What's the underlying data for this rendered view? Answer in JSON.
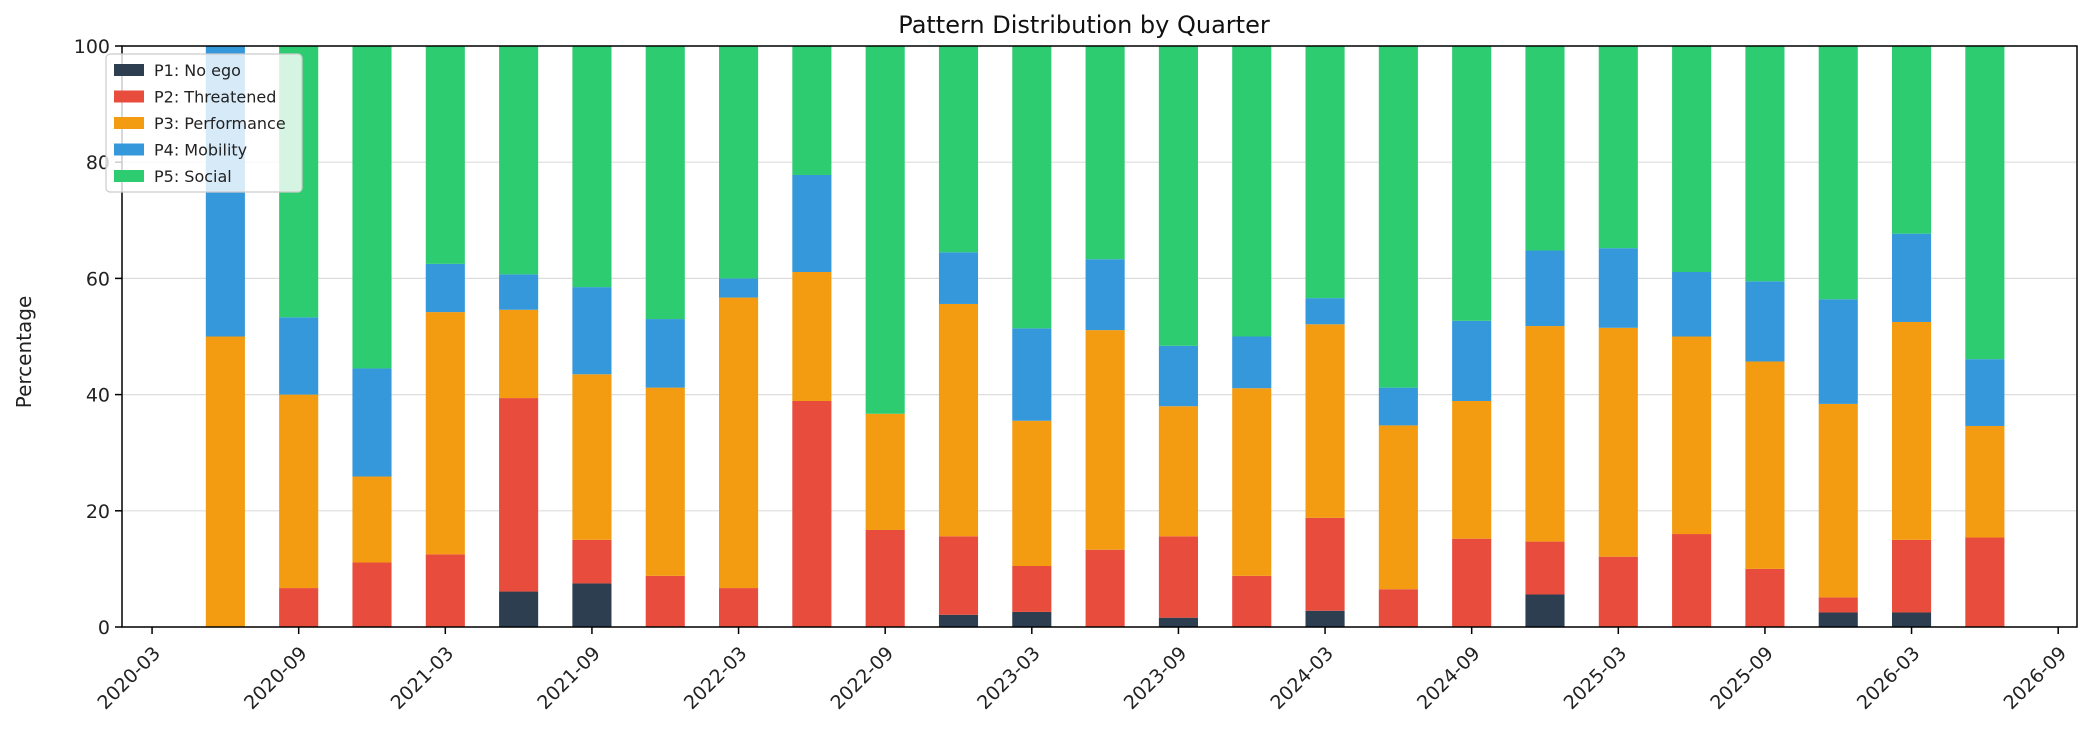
{
  "chart_data": {
    "type": "bar",
    "stacked": true,
    "title": "Pattern Distribution by Quarter",
    "xlabel": "",
    "ylabel": "Percentage",
    "ylim": [
      0,
      100
    ],
    "yticks": [
      0,
      20,
      40,
      60,
      80,
      100
    ],
    "xticks": [
      "2020-03",
      "2020-09",
      "2021-03",
      "2021-09",
      "2022-03",
      "2022-09",
      "2023-03",
      "2023-09",
      "2024-03",
      "2024-09",
      "2025-03",
      "2025-09",
      "2026-03",
      "2026-09"
    ],
    "x_range": [
      "2020-03",
      "2026-09"
    ],
    "categories": [
      "2020-06",
      "2020-09",
      "2020-12",
      "2021-03",
      "2021-06",
      "2021-09",
      "2021-12",
      "2022-03",
      "2022-06",
      "2022-09",
      "2022-12",
      "2023-03",
      "2023-06",
      "2023-09",
      "2023-12",
      "2024-03",
      "2024-06",
      "2024-09",
      "2024-12",
      "2025-03",
      "2025-06",
      "2025-09",
      "2025-12",
      "2026-03",
      "2026-06"
    ],
    "grid": "y",
    "legend_position": "top-left",
    "series": [
      {
        "name": "P1: No ego",
        "color": "#2c3e50",
        "values": [
          0,
          0,
          0,
          0,
          6.1,
          7.5,
          0,
          0,
          0,
          0,
          2.1,
          2.6,
          0,
          1.6,
          0,
          2.8,
          0,
          0,
          5.6,
          0,
          0,
          0,
          2.5,
          2.5,
          0
        ]
      },
      {
        "name": "P2: Threatened",
        "color": "#e74c3c",
        "values": [
          0,
          6.7,
          11.1,
          12.5,
          33.3,
          7.5,
          8.8,
          6.7,
          38.9,
          16.7,
          13.5,
          7.9,
          13.3,
          14.0,
          8.8,
          16.0,
          6.5,
          15.2,
          9.1,
          12.1,
          16.0,
          10.0,
          2.6,
          12.5,
          15.4
        ]
      },
      {
        "name": "P3: Performance",
        "color": "#f39c12",
        "values": [
          50,
          33.3,
          14.8,
          41.7,
          15.2,
          28.5,
          32.4,
          50.0,
          22.2,
          20.0,
          40.0,
          25.0,
          37.8,
          22.4,
          32.3,
          33.3,
          28.2,
          23.7,
          37.1,
          39.4,
          34.0,
          35.7,
          33.3,
          37.5,
          19.2
        ]
      },
      {
        "name": "P4: Mobility",
        "color": "#3498db",
        "values": [
          50,
          13.3,
          18.6,
          8.3,
          6.1,
          15.0,
          11.8,
          3.3,
          16.7,
          0,
          8.9,
          15.9,
          12.2,
          10.4,
          8.9,
          4.5,
          6.5,
          13.8,
          13.0,
          13.7,
          11.1,
          13.8,
          18.0,
          15.2,
          11.5
        ]
      },
      {
        "name": "P5: Social",
        "color": "#2ecc71",
        "values": [
          0,
          46.7,
          55.5,
          37.5,
          39.3,
          41.5,
          47.0,
          40.0,
          22.2,
          63.3,
          35.5,
          48.6,
          36.7,
          51.6,
          50.0,
          43.4,
          58.8,
          47.3,
          35.2,
          34.8,
          38.9,
          40.5,
          43.6,
          32.3,
          53.9
        ]
      }
    ]
  }
}
